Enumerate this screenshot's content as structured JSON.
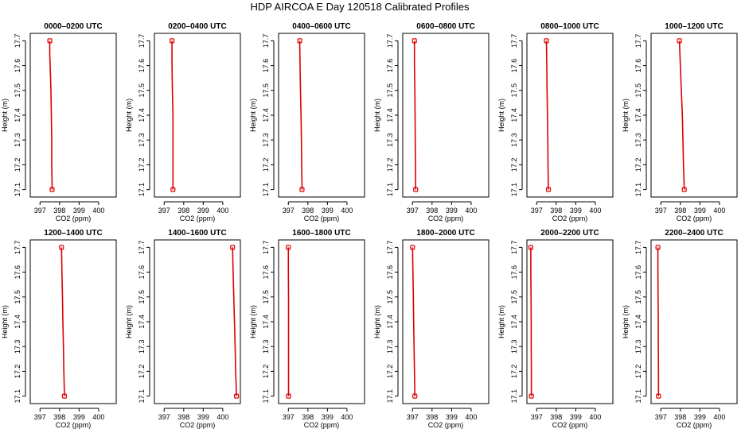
{
  "title": "HDP AIRCOA E  Day 120518  Calibrated Profiles",
  "colors": {
    "profile": "#dd0000",
    "axis": "#000000"
  },
  "chart_data": [
    {
      "type": "line",
      "title": "0000–0200 UTC",
      "xlabel": "CO2 (ppm)",
      "ylabel": "Height (m)",
      "xlim": [
        396.5,
        400.9
      ],
      "ylim": [
        17.07,
        17.73
      ],
      "xticks": [
        397,
        398,
        399,
        400
      ],
      "yticks": [
        17.1,
        17.2,
        17.3,
        17.4,
        17.5,
        17.6,
        17.7
      ],
      "x": [
        397.5,
        397.5,
        397.56,
        397.58,
        397.6,
        397.6,
        397.62
      ],
      "y": [
        17.7,
        17.65,
        17.5,
        17.4,
        17.3,
        17.2,
        17.1
      ]
    },
    {
      "type": "line",
      "title": "0200–0400 UTC",
      "xlabel": "CO2 (ppm)",
      "ylabel": "Height (m)",
      "xlim": [
        396.5,
        400.9
      ],
      "ylim": [
        17.07,
        17.73
      ],
      "xticks": [
        397,
        398,
        399,
        400
      ],
      "yticks": [
        17.1,
        17.2,
        17.3,
        17.4,
        17.5,
        17.6,
        17.7
      ],
      "x": [
        397.4,
        397.4,
        397.42,
        397.45,
        397.45,
        397.45,
        397.45
      ],
      "y": [
        17.7,
        17.6,
        17.5,
        17.4,
        17.3,
        17.2,
        17.1
      ]
    },
    {
      "type": "line",
      "title": "0400–0600 UTC",
      "xlabel": "CO2 (ppm)",
      "ylabel": "Height (m)",
      "xlim": [
        396.5,
        400.9
      ],
      "ylim": [
        17.07,
        17.73
      ],
      "xticks": [
        397,
        398,
        399,
        400
      ],
      "yticks": [
        17.1,
        17.2,
        17.3,
        17.4,
        17.5,
        17.6,
        17.7
      ],
      "x": [
        397.58,
        397.6,
        397.62,
        397.65,
        397.67,
        397.68,
        397.7
      ],
      "y": [
        17.7,
        17.6,
        17.5,
        17.4,
        17.3,
        17.2,
        17.1
      ]
    },
    {
      "type": "line",
      "title": "0600–0800 UTC",
      "xlabel": "CO2 (ppm)",
      "ylabel": "Height (m)",
      "xlim": [
        396.5,
        400.9
      ],
      "ylim": [
        17.07,
        17.73
      ],
      "xticks": [
        397,
        398,
        399,
        400
      ],
      "yticks": [
        17.1,
        17.2,
        17.3,
        17.4,
        17.5,
        17.6,
        17.7
      ],
      "x": [
        397.1,
        397.1,
        397.12,
        397.13,
        397.14,
        397.15,
        397.16
      ],
      "y": [
        17.7,
        17.6,
        17.5,
        17.4,
        17.3,
        17.2,
        17.1
      ]
    },
    {
      "type": "line",
      "title": "0800–1000 UTC",
      "xlabel": "CO2 (ppm)",
      "ylabel": "Height (m)",
      "xlim": [
        396.5,
        400.9
      ],
      "ylim": [
        17.07,
        17.73
      ],
      "xticks": [
        397,
        398,
        399,
        400
      ],
      "yticks": [
        17.1,
        17.2,
        17.3,
        17.4,
        17.5,
        17.6,
        17.7
      ],
      "x": [
        397.5,
        397.52,
        397.53,
        397.55,
        397.57,
        397.58,
        397.6
      ],
      "y": [
        17.7,
        17.6,
        17.5,
        17.4,
        17.3,
        17.2,
        17.1
      ]
    },
    {
      "type": "line",
      "title": "1000–1200 UTC",
      "xlabel": "CO2 (ppm)",
      "ylabel": "Height (m)",
      "xlim": [
        396.5,
        400.9
      ],
      "ylim": [
        17.07,
        17.73
      ],
      "xticks": [
        397,
        398,
        399,
        400
      ],
      "yticks": [
        17.1,
        17.2,
        17.3,
        17.4,
        17.5,
        17.6,
        17.7
      ],
      "x": [
        397.95,
        398.0,
        398.05,
        398.1,
        398.13,
        398.16,
        398.2
      ],
      "y": [
        17.7,
        17.6,
        17.5,
        17.4,
        17.3,
        17.2,
        17.1
      ]
    },
    {
      "type": "line",
      "title": "1200–1400 UTC",
      "xlabel": "CO2 (ppm)",
      "ylabel": "Height (m)",
      "xlim": [
        396.5,
        400.9
      ],
      "ylim": [
        17.07,
        17.73
      ],
      "xticks": [
        397,
        398,
        399,
        400
      ],
      "yticks": [
        17.1,
        17.2,
        17.3,
        17.4,
        17.5,
        17.6,
        17.7
      ],
      "x": [
        398.1,
        398.12,
        398.15,
        398.17,
        398.2,
        398.22,
        398.25
      ],
      "y": [
        17.7,
        17.6,
        17.5,
        17.4,
        17.3,
        17.2,
        17.1
      ]
    },
    {
      "type": "line",
      "title": "1400–1600 UTC",
      "xlabel": "CO2 (ppm)",
      "ylabel": "Height (m)",
      "xlim": [
        396.5,
        400.9
      ],
      "ylim": [
        17.07,
        17.73
      ],
      "xticks": [
        397,
        398,
        399,
        400
      ],
      "yticks": [
        17.1,
        17.2,
        17.3,
        17.4,
        17.5,
        17.6,
        17.7
      ],
      "x": [
        400.5,
        400.53,
        400.56,
        400.6,
        400.63,
        400.66,
        400.7
      ],
      "y": [
        17.7,
        17.6,
        17.5,
        17.4,
        17.3,
        17.2,
        17.1
      ]
    },
    {
      "type": "line",
      "title": "1600–1800 UTC",
      "xlabel": "CO2 (ppm)",
      "ylabel": "Height (m)",
      "xlim": [
        396.5,
        400.9
      ],
      "ylim": [
        17.07,
        17.73
      ],
      "xticks": [
        397,
        398,
        399,
        400
      ],
      "yticks": [
        17.1,
        17.2,
        17.3,
        17.4,
        17.5,
        17.6,
        17.7
      ],
      "x": [
        397.0,
        397.0,
        397.01,
        397.01,
        397.01,
        397.01,
        397.01
      ],
      "y": [
        17.7,
        17.6,
        17.5,
        17.4,
        17.3,
        17.2,
        17.1
      ]
    },
    {
      "type": "line",
      "title": "1800–2000 UTC",
      "xlabel": "CO2 (ppm)",
      "ylabel": "Height (m)",
      "xlim": [
        396.5,
        400.9
      ],
      "ylim": [
        17.07,
        17.73
      ],
      "xticks": [
        397,
        398,
        399,
        400
      ],
      "yticks": [
        17.1,
        17.2,
        17.3,
        17.4,
        17.5,
        17.6,
        17.7
      ],
      "x": [
        397.0,
        397.02,
        397.04,
        397.06,
        397.08,
        397.1,
        397.12
      ],
      "y": [
        17.7,
        17.6,
        17.5,
        17.4,
        17.3,
        17.2,
        17.1
      ]
    },
    {
      "type": "line",
      "title": "2000–2200 UTC",
      "xlabel": "CO2 (ppm)",
      "ylabel": "Height (m)",
      "xlim": [
        396.5,
        400.9
      ],
      "ylim": [
        17.07,
        17.73
      ],
      "xticks": [
        397,
        398,
        399,
        400
      ],
      "yticks": [
        17.1,
        17.2,
        17.3,
        17.4,
        17.5,
        17.6,
        17.7
      ],
      "x": [
        396.7,
        396.7,
        396.71,
        396.72,
        396.72,
        396.73,
        396.73
      ],
      "y": [
        17.7,
        17.6,
        17.5,
        17.4,
        17.3,
        17.2,
        17.1
      ]
    },
    {
      "type": "line",
      "title": "2200–2400 UTC",
      "xlabel": "CO2 (ppm)",
      "ylabel": "Height (m)",
      "xlim": [
        396.5,
        400.9
      ],
      "ylim": [
        17.07,
        17.73
      ],
      "xticks": [
        397,
        398,
        399,
        400
      ],
      "yticks": [
        17.1,
        17.2,
        17.3,
        17.4,
        17.5,
        17.6,
        17.7
      ],
      "x": [
        396.85,
        396.85,
        396.86,
        396.87,
        396.87,
        396.88,
        396.88
      ],
      "y": [
        17.7,
        17.6,
        17.5,
        17.4,
        17.3,
        17.2,
        17.1
      ]
    }
  ]
}
